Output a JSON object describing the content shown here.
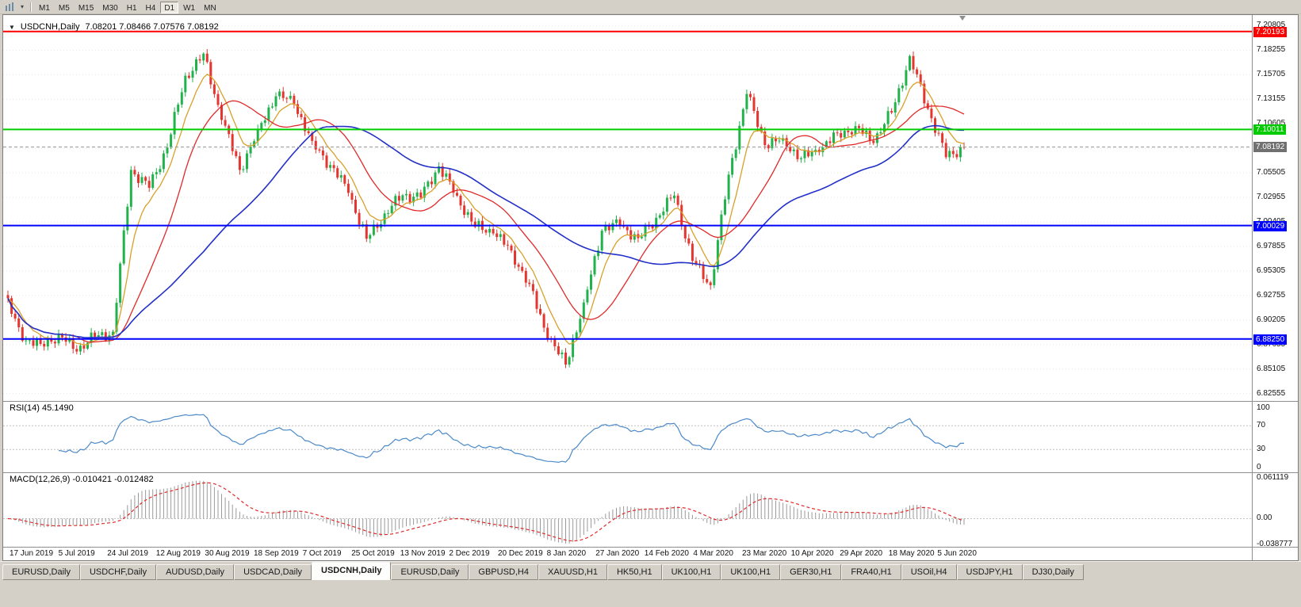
{
  "toolbar": {
    "timeframes": [
      "M1",
      "M5",
      "M15",
      "M30",
      "H1",
      "H4",
      "D1",
      "W1",
      "MN"
    ],
    "active_timeframe": "D1"
  },
  "chart": {
    "title": "USDCNH,Daily",
    "ohlc": "7.08201 7.08466 7.07576 7.08192"
  },
  "indicators": {
    "rsi_label": "RSI(14) 45.1490",
    "macd_label": "MACD(12,26,9) -0.010421 -0.012482"
  },
  "chart_data": {
    "type": "candlestick",
    "symbol": "USDCNH",
    "timeframe": "Daily",
    "price_axis": {
      "min": 6.818,
      "max": 7.219,
      "tick_labels": [
        "7.20805",
        "7.18255",
        "7.15705",
        "7.13155",
        "7.10605",
        "7.08055",
        "7.05505",
        "7.02955",
        "7.00405",
        "6.97855",
        "6.95305",
        "6.92755",
        "6.90205",
        "6.87655",
        "6.85105",
        "6.82555"
      ]
    },
    "time_axis_labels": [
      "17 Jun 2019",
      "5 Jul 2019",
      "24 Jul 2019",
      "12 Aug 2019",
      "30 Aug 2019",
      "18 Sep 2019",
      "7 Oct 2019",
      "25 Oct 2019",
      "13 Nov 2019",
      "2 Dec 2019",
      "20 Dec 2019",
      "8 Jan 2020",
      "27 Jan 2020",
      "14 Feb 2020",
      "4 Mar 2020",
      "23 Mar 2020",
      "10 Apr 2020",
      "29 Apr 2020",
      "18 May 2020",
      "5 Jun 2020"
    ],
    "weekly_close_estimates": [
      6.928,
      6.883,
      6.876,
      6.886,
      6.871,
      6.885,
      6.889,
      7.058,
      7.04,
      7.082,
      7.155,
      7.178,
      7.112,
      7.058,
      7.098,
      7.136,
      7.128,
      7.086,
      7.063,
      7.036,
      6.986,
      7.012,
      7.032,
      7.03,
      7.062,
      7.03,
      6.999,
      6.994,
      6.973,
      6.938,
      6.885,
      6.856,
      6.918,
      6.996,
      7.002,
      6.986,
      7.008,
      7.032,
      6.964,
      6.938,
      7.052,
      7.138,
      7.085,
      7.089,
      7.07,
      7.079,
      7.095,
      7.102,
      7.088,
      7.118,
      7.175,
      7.122,
      7.072,
      7.082
    ],
    "candles_per_week": 5,
    "horizontal_lines": [
      {
        "price": 7.20193,
        "label": "7.20193",
        "color": "#ff0000"
      },
      {
        "price": 7.10011,
        "label": "7.10011",
        "color": "#00cc00"
      },
      {
        "price": 7.00029,
        "label": "7.00029",
        "color": "#0000ff"
      },
      {
        "price": 6.8825,
        "label": "6.88250",
        "color": "#0000ff"
      }
    ],
    "bid_line": {
      "price": 7.08192,
      "label": "7.08192",
      "color": "#707070"
    },
    "moving_averages": [
      {
        "type": "ema",
        "period": 8,
        "color": "#d8a02a"
      },
      {
        "type": "sma",
        "period": 20,
        "color": "#e02a2a"
      },
      {
        "type": "sma",
        "period": 55,
        "color": "#2230c8"
      }
    ],
    "candle_colors": {
      "up": "#22b24c",
      "down": "#e5352f"
    },
    "rsi": {
      "period": 14,
      "value": 45.149,
      "levels": [
        70,
        30
      ],
      "scale_labels": [
        "100",
        "70",
        "30",
        "0"
      ],
      "scale_values": [
        100,
        70,
        30,
        0
      ],
      "range": [
        -8,
        110
      ],
      "color": "#4b89c8"
    },
    "macd": {
      "fast": 12,
      "slow": 26,
      "signal": 9,
      "value": -0.010421,
      "signal_value": -0.012482,
      "scale_labels": [
        "0.061119",
        "0.00",
        "-0.038777"
      ],
      "scale_values": [
        0.061119,
        0,
        -0.038777
      ],
      "range": [
        -0.042,
        0.068
      ],
      "histogram_color": "#9a9a9a",
      "signal_color": "#e02a2a"
    }
  },
  "tabs": {
    "items": [
      "EURUSD,Daily",
      "USDCHF,Daily",
      "AUDUSD,Daily",
      "USDCAD,Daily",
      "USDCNH,Daily",
      "EURUSD,Daily",
      "GBPUSD,H4",
      "XAUUSD,H1",
      "HK50,H1",
      "UK100,H1",
      "UK100,H1",
      "GER30,H1",
      "FRA40,H1",
      "USOil,H4",
      "USDJPY,H1",
      "DJ30,Daily"
    ],
    "active_index": 4
  }
}
